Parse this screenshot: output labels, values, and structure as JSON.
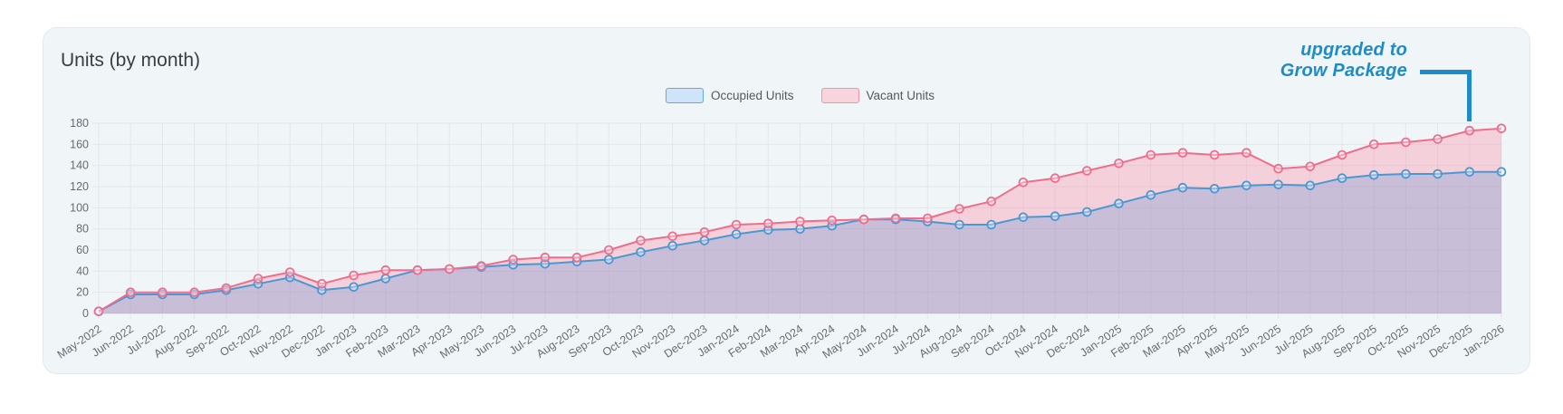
{
  "card": {
    "title": "Units (by month)"
  },
  "legend": [
    {
      "label": "Occupied Units",
      "fill": "#cfe4f8",
      "border": "#64a8dd"
    },
    {
      "label": "Vacant Units",
      "fill": "#f9d4dd",
      "border": "#f193a7"
    }
  ],
  "annotation": {
    "line1": "upgraded to",
    "line2": "Grow Package",
    "color": "#1d8cc8",
    "points_to": "Dec-2025"
  },
  "chart_data": {
    "type": "area",
    "title": "Units (by month)",
    "xlabel": "",
    "ylabel": "",
    "ylim": [
      0,
      180
    ],
    "ytick_step": 20,
    "grid": true,
    "legend_position": "top-center",
    "x": [
      "May-2022",
      "Jun-2022",
      "Jul-2022",
      "Aug-2022",
      "Sep-2022",
      "Oct-2022",
      "Nov-2022",
      "Dec-2022",
      "Jan-2023",
      "Feb-2023",
      "Mar-2023",
      "Apr-2023",
      "May-2023",
      "Jun-2023",
      "Jul-2023",
      "Aug-2023",
      "Sep-2023",
      "Oct-2023",
      "Nov-2023",
      "Dec-2023",
      "Jan-2024",
      "Feb-2024",
      "Mar-2024",
      "Apr-2024",
      "May-2024",
      "Jun-2024",
      "Jul-2024",
      "Aug-2024",
      "Sep-2024",
      "Oct-2024",
      "Nov-2024",
      "Dec-2024",
      "Jan-2025",
      "Feb-2025",
      "Mar-2025",
      "Apr-2025",
      "May-2025",
      "Jun-2025",
      "Jul-2025",
      "Aug-2025",
      "Sep-2025",
      "Oct-2025",
      "Nov-2025",
      "Dec-2025",
      "Jan-2026"
    ],
    "series": [
      {
        "name": "Occupied Units",
        "color": "#4a98d3",
        "fill": "rgba(54,162,235,0.30)",
        "values": [
          2,
          18,
          18,
          18,
          22,
          28,
          34,
          22,
          25,
          33,
          41,
          42,
          44,
          46,
          47,
          49,
          51,
          58,
          64,
          69,
          75,
          79,
          80,
          83,
          89,
          89,
          87,
          84,
          84,
          91,
          92,
          96,
          104,
          112,
          119,
          118,
          121,
          122,
          121,
          128,
          131,
          132,
          132,
          134,
          134
        ]
      },
      {
        "name": "Vacant Units",
        "color": "#f06d8c",
        "fill": "rgba(255,99,132,0.25)",
        "values": [
          2,
          20,
          20,
          20,
          24,
          33,
          39,
          28,
          36,
          41,
          41,
          42,
          45,
          51,
          53,
          53,
          60,
          69,
          73,
          77,
          84,
          85,
          87,
          88,
          89,
          90,
          90,
          99,
          106,
          124,
          128,
          135,
          142,
          150,
          152,
          150,
          152,
          137,
          139,
          150,
          160,
          162,
          165,
          173,
          175
        ]
      }
    ]
  }
}
